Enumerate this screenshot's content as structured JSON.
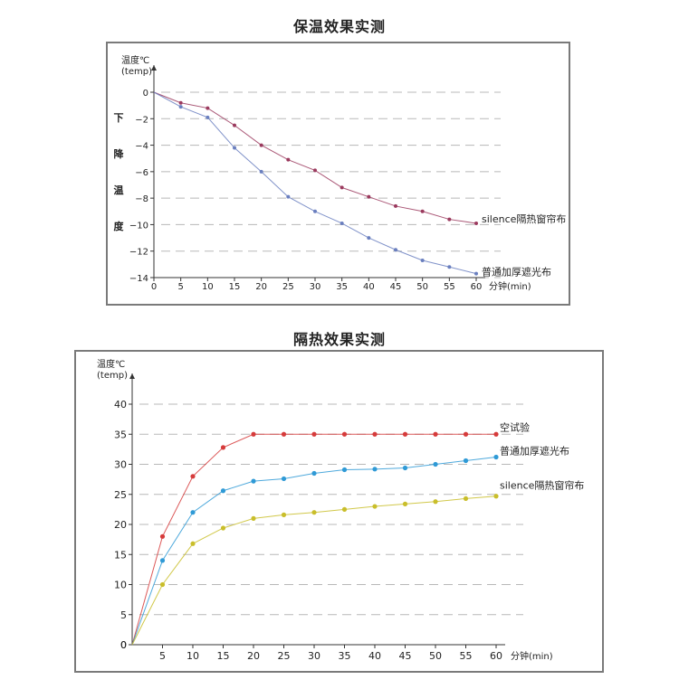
{
  "chart_data": [
    {
      "type": "line",
      "title": "保温效果实测",
      "ylabel_line1": "温度℃",
      "ylabel_line2": "(temp)",
      "side_label": [
        "下",
        "降",
        "温",
        "度"
      ],
      "xlabel": "分钟(min)",
      "x": [
        0,
        5,
        10,
        15,
        20,
        25,
        30,
        35,
        40,
        45,
        50,
        55,
        60
      ],
      "xlim": [
        0,
        60
      ],
      "ylim": [
        -14,
        0
      ],
      "yticks": [
        0,
        -2,
        -4,
        -6,
        -8,
        -10,
        -12,
        -14
      ],
      "yticklabels": [
        "0",
        "−2",
        "−4",
        "−6",
        "−8",
        "−10",
        "−12",
        "−14"
      ],
      "grid": true,
      "series": [
        {
          "name": "silence隔热窗帘布",
          "color": "#9b3a5e",
          "values": [
            0,
            -0.8,
            -1.2,
            -2.5,
            -4.0,
            -5.1,
            -5.9,
            -7.2,
            -7.9,
            -8.6,
            -9.0,
            -9.6,
            -9.9
          ]
        },
        {
          "name": "普通加厚遮光布",
          "color": "#6a7fbf",
          "values": [
            0,
            -1.1,
            -1.9,
            -4.2,
            -6.0,
            -7.9,
            -9.0,
            -9.9,
            -11.0,
            -11.9,
            -12.7,
            -13.2,
            -13.7
          ]
        }
      ]
    },
    {
      "type": "line",
      "title": "隔热效果实测",
      "ylabel_line1": "温度℃",
      "ylabel_line2": "(temp)",
      "xlabel": "分钟(min)",
      "x": [
        0,
        5,
        10,
        15,
        20,
        25,
        30,
        35,
        40,
        45,
        50,
        55,
        60
      ],
      "xlim": [
        0,
        60
      ],
      "ylim": [
        0,
        40
      ],
      "yticks": [
        0,
        5,
        10,
        15,
        20,
        25,
        30,
        35,
        40
      ],
      "yticklabels": [
        "0",
        "5",
        "10",
        "15",
        "20",
        "25",
        "30",
        "35",
        "40"
      ],
      "grid": true,
      "series": [
        {
          "name": "空试验",
          "color": "#d63b3b",
          "values": [
            0,
            18.0,
            28.0,
            32.8,
            35,
            35,
            35,
            35,
            35,
            35,
            35,
            35,
            35
          ]
        },
        {
          "name": "普通加厚遮光布",
          "color": "#2f9ad6",
          "values": [
            0,
            14.0,
            22.0,
            25.6,
            27.2,
            27.6,
            28.5,
            29.1,
            29.2,
            29.4,
            30.0,
            30.6,
            31.2
          ]
        },
        {
          "name": "silence隔热窗帘布",
          "color": "#c9be2a",
          "values": [
            0,
            10.0,
            16.8,
            19.4,
            21.0,
            21.6,
            22.0,
            22.5,
            23.0,
            23.4,
            23.8,
            24.3,
            24.7
          ]
        }
      ]
    }
  ]
}
